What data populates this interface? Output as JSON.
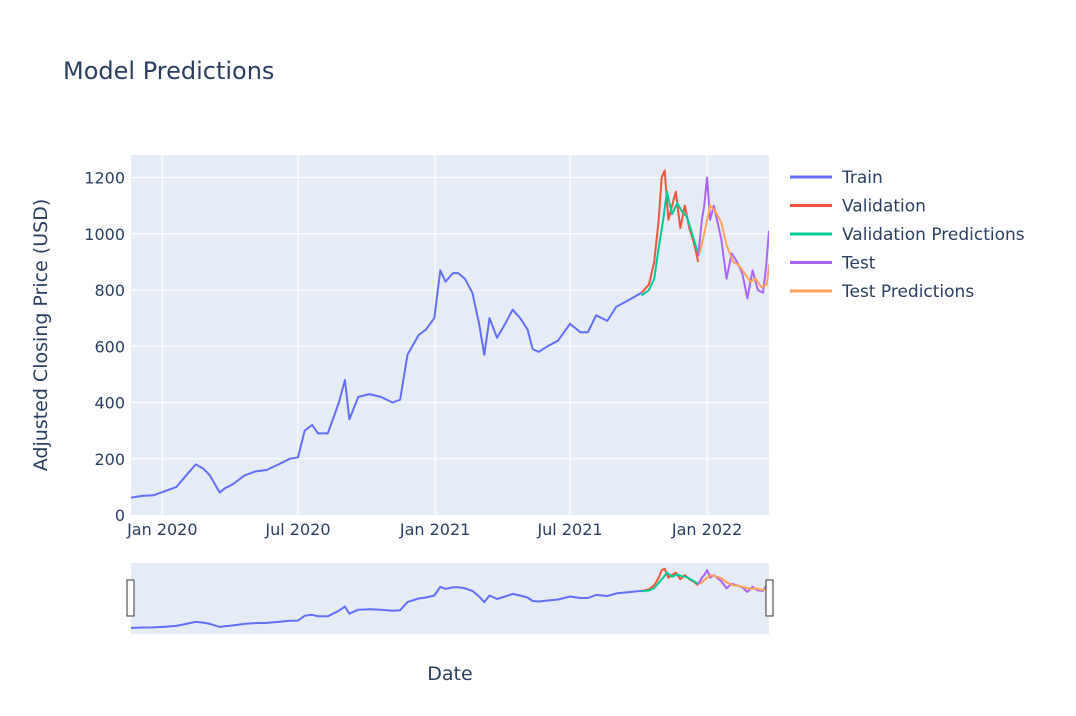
{
  "chart_data": {
    "type": "line",
    "title": "Model Predictions",
    "xlabel": "Date",
    "ylabel": "Adjusted Closing Price (USD)",
    "ylim": [
      0,
      1280
    ],
    "xlim": [
      "2019-11-20",
      "2022-03-25"
    ],
    "y_ticks": [
      0,
      200,
      400,
      600,
      800,
      1000,
      1200
    ],
    "x_ticks": [
      {
        "date": "2020-01-01",
        "label": "Jan 2020"
      },
      {
        "date": "2020-07-01",
        "label": "Jul 2020"
      },
      {
        "date": "2021-01-01",
        "label": "Jan 2021"
      },
      {
        "date": "2021-07-01",
        "label": "Jul 2021"
      },
      {
        "date": "2022-01-01",
        "label": "Jan 2022"
      }
    ],
    "grid": true,
    "legend_position": "right",
    "rangeslider": true,
    "series": [
      {
        "name": "Train",
        "color": "#636efa",
        "points": [
          [
            "2019-11-20",
            62
          ],
          [
            "2019-12-05",
            68
          ],
          [
            "2019-12-20",
            70
          ],
          [
            "2020-01-05",
            85
          ],
          [
            "2020-01-20",
            100
          ],
          [
            "2020-02-05",
            150
          ],
          [
            "2020-02-15",
            180
          ],
          [
            "2020-02-25",
            165
          ],
          [
            "2020-03-05",
            140
          ],
          [
            "2020-03-18",
            80
          ],
          [
            "2020-03-25",
            95
          ],
          [
            "2020-04-05",
            110
          ],
          [
            "2020-04-20",
            140
          ],
          [
            "2020-05-05",
            155
          ],
          [
            "2020-05-20",
            160
          ],
          [
            "2020-06-05",
            180
          ],
          [
            "2020-06-20",
            200
          ],
          [
            "2020-07-01",
            205
          ],
          [
            "2020-07-10",
            300
          ],
          [
            "2020-07-20",
            320
          ],
          [
            "2020-07-28",
            290
          ],
          [
            "2020-08-10",
            290
          ],
          [
            "2020-08-25",
            400
          ],
          [
            "2020-09-02",
            480
          ],
          [
            "2020-09-08",
            340
          ],
          [
            "2020-09-20",
            420
          ],
          [
            "2020-10-05",
            430
          ],
          [
            "2020-10-20",
            420
          ],
          [
            "2020-11-05",
            400
          ],
          [
            "2020-11-15",
            410
          ],
          [
            "2020-11-25",
            570
          ],
          [
            "2020-12-10",
            640
          ],
          [
            "2020-12-20",
            660
          ],
          [
            "2020-12-31",
            700
          ],
          [
            "2021-01-08",
            870
          ],
          [
            "2021-01-15",
            830
          ],
          [
            "2021-01-25",
            860
          ],
          [
            "2021-02-01",
            860
          ],
          [
            "2021-02-10",
            840
          ],
          [
            "2021-02-20",
            790
          ],
          [
            "2021-03-01",
            680
          ],
          [
            "2021-03-08",
            570
          ],
          [
            "2021-03-15",
            700
          ],
          [
            "2021-03-25",
            630
          ],
          [
            "2021-04-05",
            680
          ],
          [
            "2021-04-15",
            730
          ],
          [
            "2021-04-25",
            700
          ],
          [
            "2021-05-05",
            660
          ],
          [
            "2021-05-12",
            590
          ],
          [
            "2021-05-20",
            580
          ],
          [
            "2021-06-01",
            600
          ],
          [
            "2021-06-15",
            620
          ],
          [
            "2021-07-01",
            680
          ],
          [
            "2021-07-15",
            650
          ],
          [
            "2021-07-25",
            650
          ],
          [
            "2021-08-05",
            710
          ],
          [
            "2021-08-20",
            690
          ],
          [
            "2021-09-01",
            740
          ],
          [
            "2021-09-15",
            760
          ],
          [
            "2021-09-25",
            775
          ],
          [
            "2021-10-05",
            790
          ]
        ]
      },
      {
        "name": "Validation",
        "color": "#ef553b",
        "points": [
          [
            "2021-10-05",
            790
          ],
          [
            "2021-10-15",
            820
          ],
          [
            "2021-10-22",
            900
          ],
          [
            "2021-10-28",
            1050
          ],
          [
            "2021-11-01",
            1200
          ],
          [
            "2021-11-05",
            1225
          ],
          [
            "2021-11-10",
            1050
          ],
          [
            "2021-11-15",
            1100
          ],
          [
            "2021-11-20",
            1150
          ],
          [
            "2021-11-26",
            1020
          ],
          [
            "2021-12-02",
            1100
          ],
          [
            "2021-12-08",
            1020
          ],
          [
            "2021-12-15",
            960
          ],
          [
            "2021-12-20",
            900
          ]
        ]
      },
      {
        "name": "Validation Predictions",
        "color": "#00cc96",
        "points": [
          [
            "2021-10-05",
            780
          ],
          [
            "2021-10-15",
            800
          ],
          [
            "2021-10-22",
            840
          ],
          [
            "2021-10-28",
            950
          ],
          [
            "2021-11-03",
            1050
          ],
          [
            "2021-11-08",
            1150
          ],
          [
            "2021-11-15",
            1070
          ],
          [
            "2021-11-22",
            1110
          ],
          [
            "2021-11-28",
            1080
          ],
          [
            "2021-12-05",
            1060
          ],
          [
            "2021-12-12",
            1000
          ],
          [
            "2021-12-20",
            930
          ]
        ]
      },
      {
        "name": "Test",
        "color": "#ab63fa",
        "points": [
          [
            "2021-12-20",
            920
          ],
          [
            "2021-12-25",
            1050
          ],
          [
            "2021-12-28",
            1100
          ],
          [
            "2022-01-01",
            1200
          ],
          [
            "2022-01-05",
            1050
          ],
          [
            "2022-01-10",
            1100
          ],
          [
            "2022-01-15",
            1040
          ],
          [
            "2022-01-20",
            980
          ],
          [
            "2022-01-27",
            840
          ],
          [
            "2022-02-03",
            930
          ],
          [
            "2022-02-10",
            900
          ],
          [
            "2022-02-17",
            860
          ],
          [
            "2022-02-24",
            770
          ],
          [
            "2022-03-03",
            870
          ],
          [
            "2022-03-10",
            800
          ],
          [
            "2022-03-17",
            790
          ],
          [
            "2022-03-21",
            880
          ],
          [
            "2022-03-25",
            1010
          ]
        ]
      },
      {
        "name": "Test Predictions",
        "color": "#ffa15a",
        "points": [
          [
            "2021-12-22",
            930
          ],
          [
            "2021-12-28",
            1000
          ],
          [
            "2022-01-05",
            1100
          ],
          [
            "2022-01-12",
            1080
          ],
          [
            "2022-01-20",
            1040
          ],
          [
            "2022-01-27",
            960
          ],
          [
            "2022-02-05",
            900
          ],
          [
            "2022-02-12",
            890
          ],
          [
            "2022-02-20",
            860
          ],
          [
            "2022-02-28",
            830
          ],
          [
            "2022-03-07",
            840
          ],
          [
            "2022-03-15",
            810
          ],
          [
            "2022-03-22",
            820
          ],
          [
            "2022-03-25",
            890
          ]
        ]
      }
    ]
  }
}
